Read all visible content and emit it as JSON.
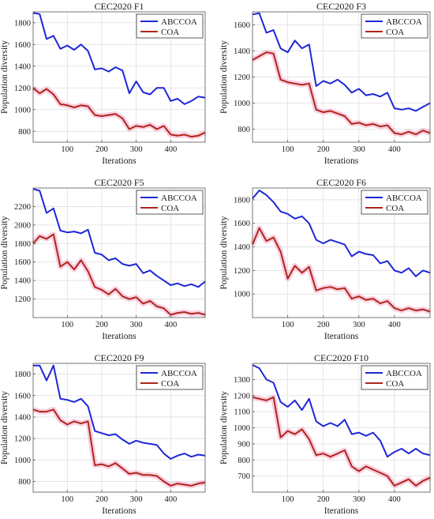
{
  "colors": {
    "abccoa": "#1f27d6",
    "coa": "#b0251c",
    "coa_glow": "#f6a9c9",
    "grid": "#dedede",
    "axis": "#555555"
  },
  "chart_data": [
    {
      "type": "line",
      "title": "CEC2020 F1",
      "xlabel": "Iterations",
      "ylabel": "Population diversity",
      "xlim": [
        1,
        500
      ],
      "ylim": [
        700,
        1900
      ],
      "xticks": [
        "100",
        "200",
        "300",
        "400"
      ],
      "yticks": [
        "800",
        "1000",
        "1200",
        "1400",
        "1600",
        "1800"
      ],
      "grid": true,
      "legend": "top-right",
      "series": [
        {
          "name": "ABCCOA",
          "color": "#1f27d6",
          "x": [
            1,
            20,
            40,
            60,
            80,
            100,
            120,
            140,
            160,
            180,
            200,
            220,
            240,
            260,
            280,
            300,
            320,
            340,
            360,
            380,
            400,
            420,
            440,
            460,
            480,
            500
          ],
          "y": [
            1890,
            1880,
            1650,
            1680,
            1560,
            1590,
            1550,
            1600,
            1540,
            1370,
            1380,
            1350,
            1390,
            1360,
            1150,
            1260,
            1160,
            1140,
            1200,
            1200,
            1080,
            1100,
            1050,
            1080,
            1120,
            1110
          ]
        },
        {
          "name": "COA",
          "color": "#b0251c",
          "x": [
            1,
            20,
            40,
            60,
            80,
            100,
            120,
            140,
            160,
            180,
            200,
            220,
            240,
            260,
            280,
            300,
            320,
            340,
            360,
            380,
            400,
            420,
            440,
            460,
            480,
            500
          ],
          "y": [
            1200,
            1150,
            1190,
            1140,
            1050,
            1040,
            1020,
            1040,
            1030,
            950,
            940,
            950,
            960,
            920,
            820,
            850,
            840,
            860,
            820,
            850,
            770,
            760,
            770,
            750,
            760,
            790
          ]
        }
      ]
    },
    {
      "type": "line",
      "title": "CEC2020 F3",
      "xlabel": "Iterations",
      "ylabel": "Population diversity",
      "xlim": [
        1,
        500
      ],
      "ylim": [
        700,
        1700
      ],
      "xticks": [
        "100",
        "200",
        "300",
        "400"
      ],
      "yticks": [
        "800",
        "1000",
        "1200",
        "1400",
        "1600"
      ],
      "grid": true,
      "legend": "top-right",
      "series": [
        {
          "name": "ABCCOA",
          "color": "#1f27d6",
          "x": [
            1,
            20,
            40,
            60,
            80,
            100,
            120,
            140,
            160,
            180,
            200,
            220,
            240,
            260,
            280,
            300,
            320,
            340,
            360,
            380,
            400,
            420,
            440,
            460,
            480,
            500
          ],
          "y": [
            1680,
            1690,
            1540,
            1560,
            1420,
            1390,
            1480,
            1420,
            1450,
            1130,
            1170,
            1150,
            1180,
            1140,
            1080,
            1110,
            1060,
            1070,
            1050,
            1080,
            960,
            950,
            960,
            940,
            970,
            1000
          ]
        },
        {
          "name": "COA",
          "color": "#b0251c",
          "x": [
            1,
            20,
            40,
            60,
            80,
            100,
            120,
            140,
            160,
            180,
            200,
            220,
            240,
            260,
            280,
            300,
            320,
            340,
            360,
            380,
            400,
            420,
            440,
            460,
            480,
            500
          ],
          "y": [
            1330,
            1360,
            1390,
            1380,
            1180,
            1160,
            1150,
            1140,
            1150,
            950,
            930,
            940,
            920,
            900,
            840,
            850,
            830,
            840,
            820,
            830,
            770,
            760,
            780,
            760,
            790,
            770
          ]
        }
      ]
    },
    {
      "type": "line",
      "title": "CEC2020 F5",
      "xlabel": "Iterations",
      "ylabel": "Population diversity",
      "xlim": [
        1,
        500
      ],
      "ylim": [
        1000,
        2400
      ],
      "xticks": [
        "100",
        "200",
        "300",
        "400"
      ],
      "yticks": [
        "1200",
        "1400",
        "1600",
        "1800",
        "2000",
        "2200"
      ],
      "grid": true,
      "legend": "top-right",
      "series": [
        {
          "name": "ABCCOA",
          "color": "#1f27d6",
          "x": [
            1,
            20,
            40,
            60,
            80,
            100,
            120,
            140,
            160,
            180,
            200,
            220,
            240,
            260,
            280,
            300,
            320,
            340,
            360,
            380,
            400,
            420,
            440,
            460,
            480,
            500
          ],
          "y": [
            2390,
            2370,
            2130,
            2180,
            1940,
            1920,
            1930,
            1910,
            1950,
            1700,
            1680,
            1620,
            1640,
            1580,
            1560,
            1580,
            1480,
            1510,
            1450,
            1400,
            1350,
            1370,
            1340,
            1360,
            1330,
            1390
          ]
        },
        {
          "name": "COA",
          "color": "#b0251c",
          "x": [
            1,
            20,
            40,
            60,
            80,
            100,
            120,
            140,
            160,
            180,
            200,
            220,
            240,
            260,
            280,
            300,
            320,
            340,
            360,
            380,
            400,
            420,
            440,
            460,
            480,
            500
          ],
          "y": [
            1800,
            1880,
            1850,
            1900,
            1550,
            1600,
            1520,
            1620,
            1500,
            1330,
            1300,
            1250,
            1310,
            1230,
            1200,
            1220,
            1150,
            1180,
            1120,
            1100,
            1030,
            1050,
            1060,
            1040,
            1050,
            1030
          ]
        }
      ]
    },
    {
      "type": "line",
      "title": "CEC2020 F6",
      "xlabel": "Iterations",
      "ylabel": "Population diversity",
      "xlim": [
        1,
        500
      ],
      "ylim": [
        800,
        1900
      ],
      "xticks": [
        "100",
        "200",
        "300",
        "400"
      ],
      "yticks": [
        "1000",
        "1200",
        "1400",
        "1600",
        "1800"
      ],
      "grid": true,
      "legend": "top-right",
      "series": [
        {
          "name": "ABCCOA",
          "color": "#1f27d6",
          "x": [
            1,
            20,
            40,
            60,
            80,
            100,
            120,
            140,
            160,
            180,
            200,
            220,
            240,
            260,
            280,
            300,
            320,
            340,
            360,
            380,
            400,
            420,
            440,
            460,
            480,
            500
          ],
          "y": [
            1810,
            1880,
            1840,
            1780,
            1700,
            1680,
            1640,
            1660,
            1600,
            1460,
            1430,
            1460,
            1440,
            1420,
            1320,
            1360,
            1340,
            1330,
            1260,
            1280,
            1200,
            1180,
            1220,
            1150,
            1200,
            1180
          ]
        },
        {
          "name": "COA",
          "color": "#b0251c",
          "x": [
            1,
            20,
            40,
            60,
            80,
            100,
            120,
            140,
            160,
            180,
            200,
            220,
            240,
            260,
            280,
            300,
            320,
            340,
            360,
            380,
            400,
            420,
            440,
            460,
            480,
            500
          ],
          "y": [
            1420,
            1560,
            1450,
            1480,
            1360,
            1130,
            1240,
            1180,
            1230,
            1030,
            1050,
            1060,
            1040,
            1050,
            960,
            980,
            950,
            960,
            920,
            940,
            880,
            860,
            880,
            860,
            870,
            850
          ]
        }
      ]
    },
    {
      "type": "line",
      "title": "CEC2020 F9",
      "xlabel": "Iterations",
      "ylabel": "Population diversity",
      "xlim": [
        1,
        500
      ],
      "ylim": [
        700,
        1900
      ],
      "xticks": [
        "100",
        "200",
        "300",
        "400"
      ],
      "yticks": [
        "800",
        "1000",
        "1200",
        "1400",
        "1600",
        "1800"
      ],
      "grid": true,
      "legend": "top-right",
      "series": [
        {
          "name": "ABCCOA",
          "color": "#1f27d6",
          "x": [
            1,
            20,
            40,
            60,
            80,
            100,
            120,
            140,
            160,
            180,
            200,
            220,
            240,
            260,
            280,
            300,
            320,
            340,
            360,
            380,
            400,
            420,
            440,
            460,
            480,
            500
          ],
          "y": [
            1880,
            1880,
            1740,
            1880,
            1570,
            1560,
            1540,
            1570,
            1500,
            1270,
            1250,
            1230,
            1240,
            1190,
            1150,
            1180,
            1160,
            1150,
            1140,
            1060,
            1010,
            1040,
            1060,
            1030,
            1050,
            1040
          ]
        },
        {
          "name": "COA",
          "color": "#b0251c",
          "x": [
            1,
            20,
            40,
            60,
            80,
            100,
            120,
            140,
            160,
            180,
            200,
            220,
            240,
            260,
            280,
            300,
            320,
            340,
            360,
            380,
            400,
            420,
            440,
            460,
            480,
            500
          ],
          "y": [
            1470,
            1450,
            1450,
            1470,
            1370,
            1330,
            1360,
            1340,
            1360,
            950,
            960,
            940,
            970,
            920,
            870,
            880,
            860,
            860,
            850,
            800,
            760,
            780,
            770,
            760,
            780,
            790
          ]
        }
      ]
    },
    {
      "type": "line",
      "title": "CEC2020 F10",
      "xlabel": "Iterations",
      "ylabel": "Population diversity",
      "xlim": [
        1,
        500
      ],
      "ylim": [
        600,
        1400
      ],
      "xticks": [
        "100",
        "200",
        "300",
        "400"
      ],
      "yticks": [
        "700",
        "800",
        "900",
        "1000",
        "1100",
        "1200",
        "1300"
      ],
      "grid": true,
      "legend": "top-right",
      "series": [
        {
          "name": "ABCCOA",
          "color": "#1f27d6",
          "x": [
            1,
            20,
            40,
            60,
            80,
            100,
            120,
            140,
            160,
            180,
            200,
            220,
            240,
            260,
            280,
            300,
            320,
            340,
            360,
            380,
            400,
            420,
            440,
            460,
            480,
            500
          ],
          "y": [
            1390,
            1370,
            1300,
            1280,
            1160,
            1130,
            1170,
            1110,
            1180,
            1040,
            1010,
            1030,
            1010,
            1050,
            960,
            970,
            950,
            970,
            920,
            820,
            850,
            870,
            840,
            870,
            840,
            830
          ]
        },
        {
          "name": "COA",
          "color": "#b0251c",
          "x": [
            1,
            20,
            40,
            60,
            80,
            100,
            120,
            140,
            160,
            180,
            200,
            220,
            240,
            260,
            280,
            300,
            320,
            340,
            360,
            380,
            400,
            420,
            440,
            460,
            480,
            500
          ],
          "y": [
            1190,
            1180,
            1170,
            1190,
            940,
            980,
            960,
            990,
            930,
            830,
            840,
            820,
            840,
            860,
            760,
            730,
            760,
            740,
            720,
            700,
            640,
            660,
            680,
            640,
            670,
            690
          ]
        }
      ]
    }
  ]
}
